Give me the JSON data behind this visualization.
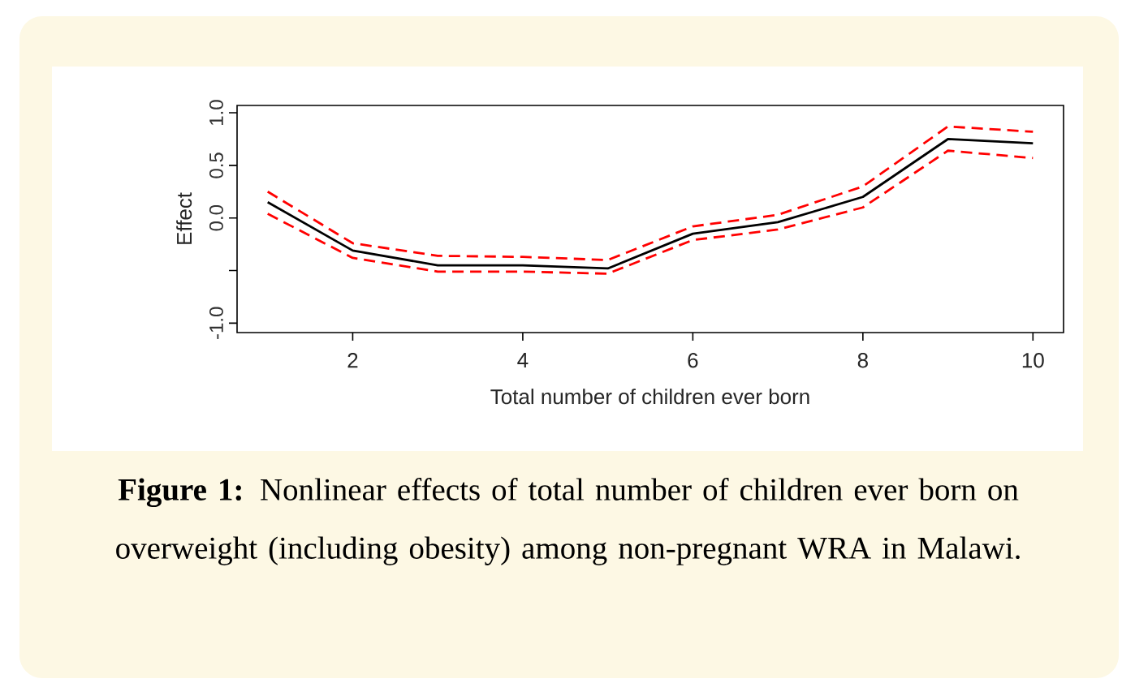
{
  "chart_data": {
    "type": "line",
    "xlabel": "Total number of children ever born",
    "ylabel": "Effect",
    "annotations": [
      "**Figure 1:** Nonlinear effects of total number of children ever born on overweight (including obesity) among non-pregnant WRA in Malawi."
    ],
    "x": [
      1,
      2,
      3,
      4,
      5,
      6,
      7,
      8,
      9,
      10
    ],
    "series": [
      {
        "color": "#000000",
        "line_style": "solid",
        "values": [
          0.15,
          -0.31,
          -0.45,
          -0.45,
          -0.48,
          -0.15,
          -0.04,
          0.2,
          0.75,
          0.71
        ]
      },
      {
        "color": "#ff0000",
        "line_style": "dashed",
        "values": [
          0.25,
          -0.24,
          -0.36,
          -0.37,
          -0.4,
          -0.08,
          0.03,
          0.3,
          0.87,
          0.82
        ]
      },
      {
        "color": "#ff0000",
        "line_style": "dashed",
        "values": [
          0.04,
          -0.38,
          -0.51,
          -0.51,
          -0.53,
          -0.21,
          -0.11,
          0.1,
          0.64,
          0.57
        ]
      }
    ],
    "xlim": [
      0.64,
      10.36
    ],
    "ylim": [
      -1.09,
      1.07
    ],
    "xticks": [
      2,
      4,
      6,
      8,
      10
    ],
    "yticks": [
      {
        "value": -1,
        "label": "-1.0"
      },
      {
        "value": -0.5,
        "label": null
      },
      {
        "value": 0,
        "label": "0.0"
      },
      {
        "value": 0.5,
        "label": "0.5"
      },
      {
        "value": 1,
        "label": "1.0"
      }
    ],
    "grid": false,
    "marker": "none"
  }
}
